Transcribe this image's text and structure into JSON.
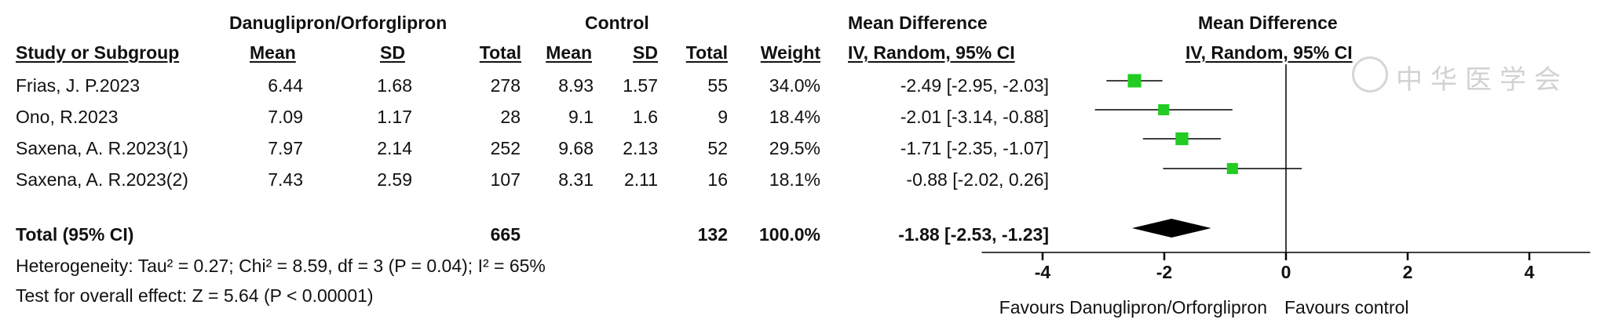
{
  "header": {
    "group1": "Danuglipron/Orforglipron",
    "group2": "Control",
    "md_title1": "Mean Difference",
    "md_title2": "Mean Difference",
    "col_study": "Study or Subgroup",
    "col_mean1": "Mean",
    "col_sd1": "SD",
    "col_total1": "Total",
    "col_mean2": "Mean",
    "col_sd2": "SD",
    "col_total2": "Total",
    "col_weight": "Weight",
    "col_ci": "IV, Random, 95% CI",
    "col_ci2": "IV, Random, 95% CI"
  },
  "rows": [
    {
      "study": "Frias, J. P.2023",
      "mean1": "6.44",
      "sd1": "1.68",
      "total1": "278",
      "mean2": "8.93",
      "sd2": "1.57",
      "total2": "55",
      "weight": "34.0%",
      "ci": "-2.49 [-2.95, -2.03]"
    },
    {
      "study": "Ono, R.2023",
      "mean1": "7.09",
      "sd1": "1.17",
      "total1": "28",
      "mean2": "9.1",
      "sd2": "1.6",
      "total2": "9",
      "weight": "18.4%",
      "ci": "-2.01 [-3.14, -0.88]"
    },
    {
      "study": "Saxena, A. R.2023(1)",
      "mean1": "7.97",
      "sd1": "2.14",
      "total1": "252",
      "mean2": "9.68",
      "sd2": "2.13",
      "total2": "52",
      "weight": "29.5%",
      "ci": "-1.71 [-2.35, -1.07]"
    },
    {
      "study": "Saxena, A. R.2023(2)",
      "mean1": "7.43",
      "sd1": "2.59",
      "total1": "107",
      "mean2": "8.31",
      "sd2": "2.11",
      "total2": "16",
      "weight": "18.1%",
      "ci": "-0.88 [-2.02, 0.26]"
    }
  ],
  "total": {
    "label": "Total (95% CI)",
    "total1": "665",
    "total2": "132",
    "weight": "100.0%",
    "ci": "-1.88 [-2.53, -1.23]"
  },
  "heterogeneity": "Heterogeneity: Tau² = 0.27; Chi² = 8.59, df = 3 (P = 0.04); I² = 65%",
  "overall": "Test for overall effect: Z = 5.64 (P < 0.00001)",
  "watermark": "中华医学会",
  "chart_data": {
    "type": "scatter",
    "subtype": "forest",
    "studies": [
      {
        "name": "Frias, J. P.2023",
        "md": -2.49,
        "lo": -2.95,
        "hi": -2.03,
        "weight": 34.0
      },
      {
        "name": "Ono, R.2023",
        "md": -2.01,
        "lo": -3.14,
        "hi": -0.88,
        "weight": 18.4
      },
      {
        "name": "Saxena, A. R.2023(1)",
        "md": -1.71,
        "lo": -2.35,
        "hi": -1.07,
        "weight": 29.5
      },
      {
        "name": "Saxena, A. R.2023(2)",
        "md": -0.88,
        "lo": -2.02,
        "hi": 0.26,
        "weight": 18.1
      }
    ],
    "pooled": {
      "md": -1.88,
      "lo": -2.53,
      "hi": -1.23
    },
    "xlim": [
      -5,
      5
    ],
    "ticks": [
      -4,
      -2,
      0,
      2,
      4
    ],
    "tick_labels": [
      "-4",
      "-2",
      "0",
      "2",
      "4"
    ],
    "xlabel_left": "Favours Danuglipron/Orforglipron",
    "xlabel_right": "Favours control",
    "marker_color": "#22cc22",
    "diamond_color": "#000000"
  }
}
